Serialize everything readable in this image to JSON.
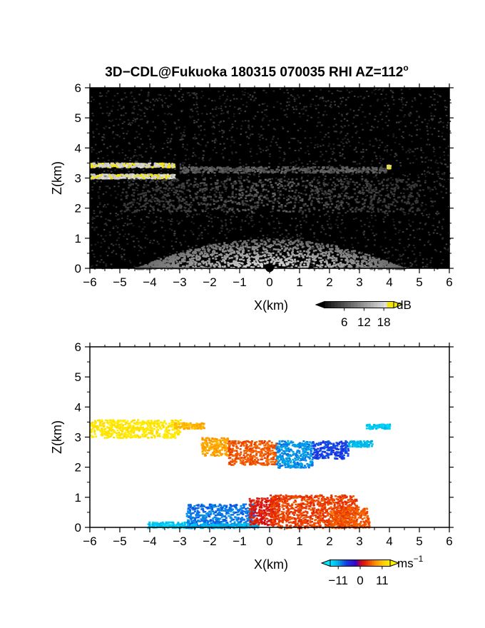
{
  "title": {
    "text": "3D−CDL@Fukuoka 180315 070035 RHI AZ=112",
    "degree_mark": "o"
  },
  "chart_data": [
    {
      "type": "heatmap",
      "quantity": "SNR",
      "xlabel": "X(km)",
      "ylabel": "Z(km)",
      "xlim": [
        -6,
        6
      ],
      "ylim": [
        0,
        6
      ],
      "xticks": [
        "−6",
        "−5",
        "−4",
        "−3",
        "−2",
        "−1",
        "0",
        "1",
        "2",
        "3",
        "4",
        "5",
        "6"
      ],
      "yticks": [
        "0",
        "1",
        "2",
        "3",
        "4",
        "5",
        "6"
      ],
      "colormap": "grayscale-to-yellow",
      "background": "#000000",
      "colorbar": {
        "unit": "dB",
        "ticks": [
          "6",
          "12",
          "18"
        ],
        "range": [
          0,
          21
        ]
      },
      "features": [
        {
          "layer": "cloud base echo",
          "x": [
            -6,
            -3.2
          ],
          "z": [
            3.0,
            3.5
          ],
          "level": "saturated (>18 dB)"
        },
        {
          "layer": "faint layer",
          "x": [
            -3,
            4
          ],
          "z": [
            3.2,
            3.4
          ],
          "level": "low"
        },
        {
          "layer": "diffuse band",
          "x": [
            -5,
            5
          ],
          "z": [
            1.9,
            3.0
          ],
          "level": "low"
        },
        {
          "layer": "near-field clutter fan",
          "x": [
            -4.5,
            4.5
          ],
          "z": [
            0,
            1.0
          ],
          "level": "high near origin"
        },
        {
          "layer": "point echo",
          "x": [
            3.9,
            4.0
          ],
          "z": [
            3.35,
            3.45
          ],
          "level": "high"
        }
      ]
    },
    {
      "type": "heatmap",
      "quantity": "Doppler velocity",
      "xlabel": "X(km)",
      "ylabel": "Z(km)",
      "xlim": [
        -6,
        6
      ],
      "ylim": [
        0,
        6
      ],
      "xticks": [
        "−6",
        "−5",
        "−4",
        "−3",
        "−2",
        "−1",
        "0",
        "1",
        "2",
        "3",
        "4",
        "5",
        "6"
      ],
      "yticks": [
        "0",
        "1",
        "2",
        "3",
        "4",
        "5",
        "6"
      ],
      "colormap": "diverging cyan-blue-red-yellow",
      "background": "#ffffff",
      "colorbar": {
        "unit": "ms",
        "unit_exponent": "−1",
        "ticks": [
          "−11",
          "0",
          "11"
        ],
        "range": [
          -15,
          15
        ]
      },
      "regions": [
        {
          "x": [
            -6,
            -3.0
          ],
          "z": [
            3.0,
            3.6
          ],
          "velocity": 14
        },
        {
          "x": [
            -3.2,
            -2.2
          ],
          "z": [
            3.3,
            3.5
          ],
          "velocity": 10
        },
        {
          "x": [
            -2.3,
            -1.4
          ],
          "z": [
            2.4,
            3.0
          ],
          "velocity": 9
        },
        {
          "x": [
            -1.4,
            0.2
          ],
          "z": [
            2.1,
            2.9
          ],
          "velocity": 5
        },
        {
          "x": [
            0.2,
            1.4
          ],
          "z": [
            2.0,
            2.9
          ],
          "velocity": -10
        },
        {
          "x": [
            1.4,
            2.6
          ],
          "z": [
            2.3,
            2.9
          ],
          "velocity": -7
        },
        {
          "x": [
            2.6,
            3.4
          ],
          "z": [
            2.7,
            2.9
          ],
          "velocity": -12
        },
        {
          "x": [
            3.2,
            4.0
          ],
          "z": [
            3.3,
            3.45
          ],
          "velocity": -13
        },
        {
          "x": [
            -4.1,
            -2.6
          ],
          "z": [
            0,
            0.2
          ],
          "velocity": -13
        },
        {
          "x": [
            -2.8,
            -0.5
          ],
          "z": [
            0,
            0.8
          ],
          "velocity": -9
        },
        {
          "x": [
            -3.0,
            -0.4
          ],
          "z": [
            0,
            0.15
          ],
          "velocity": -12
        },
        {
          "x": [
            -0.7,
            0.3
          ],
          "z": [
            0.1,
            1.0
          ],
          "velocity": 2
        },
        {
          "x": [
            0,
            2.9
          ],
          "z": [
            0,
            1.1
          ],
          "velocity": 4
        },
        {
          "x": [
            2.0,
            3.3
          ],
          "z": [
            0,
            0.7
          ],
          "velocity": 5
        }
      ]
    }
  ]
}
